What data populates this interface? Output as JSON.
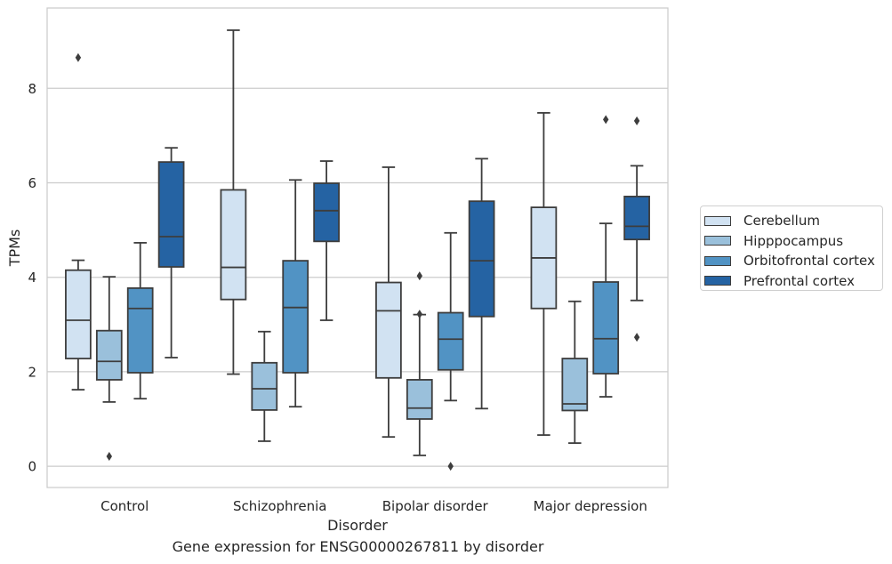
{
  "chart_data": {
    "type": "box",
    "xlabel": "Disorder",
    "ylabel": "TPMs",
    "caption": "Gene expression for ENSG00000267811 by disorder",
    "categories": [
      "Control",
      "Schizophrenia",
      "Bipolar disorder",
      "Major depression"
    ],
    "y_ticks": [
      0,
      2,
      4,
      6,
      8
    ],
    "ylim": [
      -0.45,
      9.7
    ],
    "grid": "horizontal",
    "legend_position": "right",
    "series": [
      {
        "name": "Cerebellum",
        "color": "#d1e2f2",
        "boxes": [
          {
            "whislo": 1.62,
            "q1": 2.28,
            "med": 3.09,
            "q3": 4.15,
            "whishi": 4.36,
            "fliers": [
              8.65
            ]
          },
          {
            "whislo": 1.95,
            "q1": 3.53,
            "med": 4.21,
            "q3": 5.85,
            "whishi": 9.23,
            "fliers": []
          },
          {
            "whislo": 0.62,
            "q1": 1.87,
            "med": 3.29,
            "q3": 3.89,
            "whishi": 6.33,
            "fliers": []
          },
          {
            "whislo": 0.66,
            "q1": 3.34,
            "med": 4.41,
            "q3": 5.48,
            "whishi": 7.48,
            "fliers": []
          }
        ]
      },
      {
        "name": "Hipppocampus",
        "color": "#9ac0db",
        "boxes": [
          {
            "whislo": 1.36,
            "q1": 1.83,
            "med": 2.22,
            "q3": 2.87,
            "whishi": 4.01,
            "fliers": [
              0.21
            ]
          },
          {
            "whislo": 0.53,
            "q1": 1.19,
            "med": 1.64,
            "q3": 2.19,
            "whishi": 2.85,
            "fliers": []
          },
          {
            "whislo": 0.23,
            "q1": 1.0,
            "med": 1.23,
            "q3": 1.83,
            "whishi": 3.21,
            "fliers": [
              3.22,
              4.03
            ]
          },
          {
            "whislo": 0.49,
            "q1": 1.18,
            "med": 1.32,
            "q3": 2.28,
            "whishi": 3.49,
            "fliers": []
          }
        ]
      },
      {
        "name": "Orbitofrontal cortex",
        "color": "#5193c4",
        "boxes": [
          {
            "whislo": 1.43,
            "q1": 1.98,
            "med": 3.34,
            "q3": 3.77,
            "whishi": 4.73,
            "fliers": []
          },
          {
            "whislo": 1.26,
            "q1": 1.98,
            "med": 3.36,
            "q3": 4.35,
            "whishi": 6.06,
            "fliers": []
          },
          {
            "whislo": 1.39,
            "q1": 2.04,
            "med": 2.69,
            "q3": 3.25,
            "whishi": 4.94,
            "fliers": [
              0.0
            ]
          },
          {
            "whislo": 1.47,
            "q1": 1.96,
            "med": 2.7,
            "q3": 3.9,
            "whishi": 5.14,
            "fliers": [
              7.34
            ]
          }
        ]
      },
      {
        "name": "Prefrontal cortex",
        "color": "#2563a3",
        "boxes": [
          {
            "whislo": 2.3,
            "q1": 4.22,
            "med": 4.86,
            "q3": 6.44,
            "whishi": 6.74,
            "fliers": []
          },
          {
            "whislo": 3.09,
            "q1": 4.76,
            "med": 5.41,
            "q3": 5.99,
            "whishi": 6.46,
            "fliers": []
          },
          {
            "whislo": 1.22,
            "q1": 3.17,
            "med": 4.35,
            "q3": 5.61,
            "whishi": 6.51,
            "fliers": []
          },
          {
            "whislo": 3.51,
            "q1": 4.8,
            "med": 5.08,
            "q3": 5.71,
            "whishi": 6.36,
            "fliers": [
              2.73,
              7.31
            ]
          }
        ]
      }
    ]
  }
}
